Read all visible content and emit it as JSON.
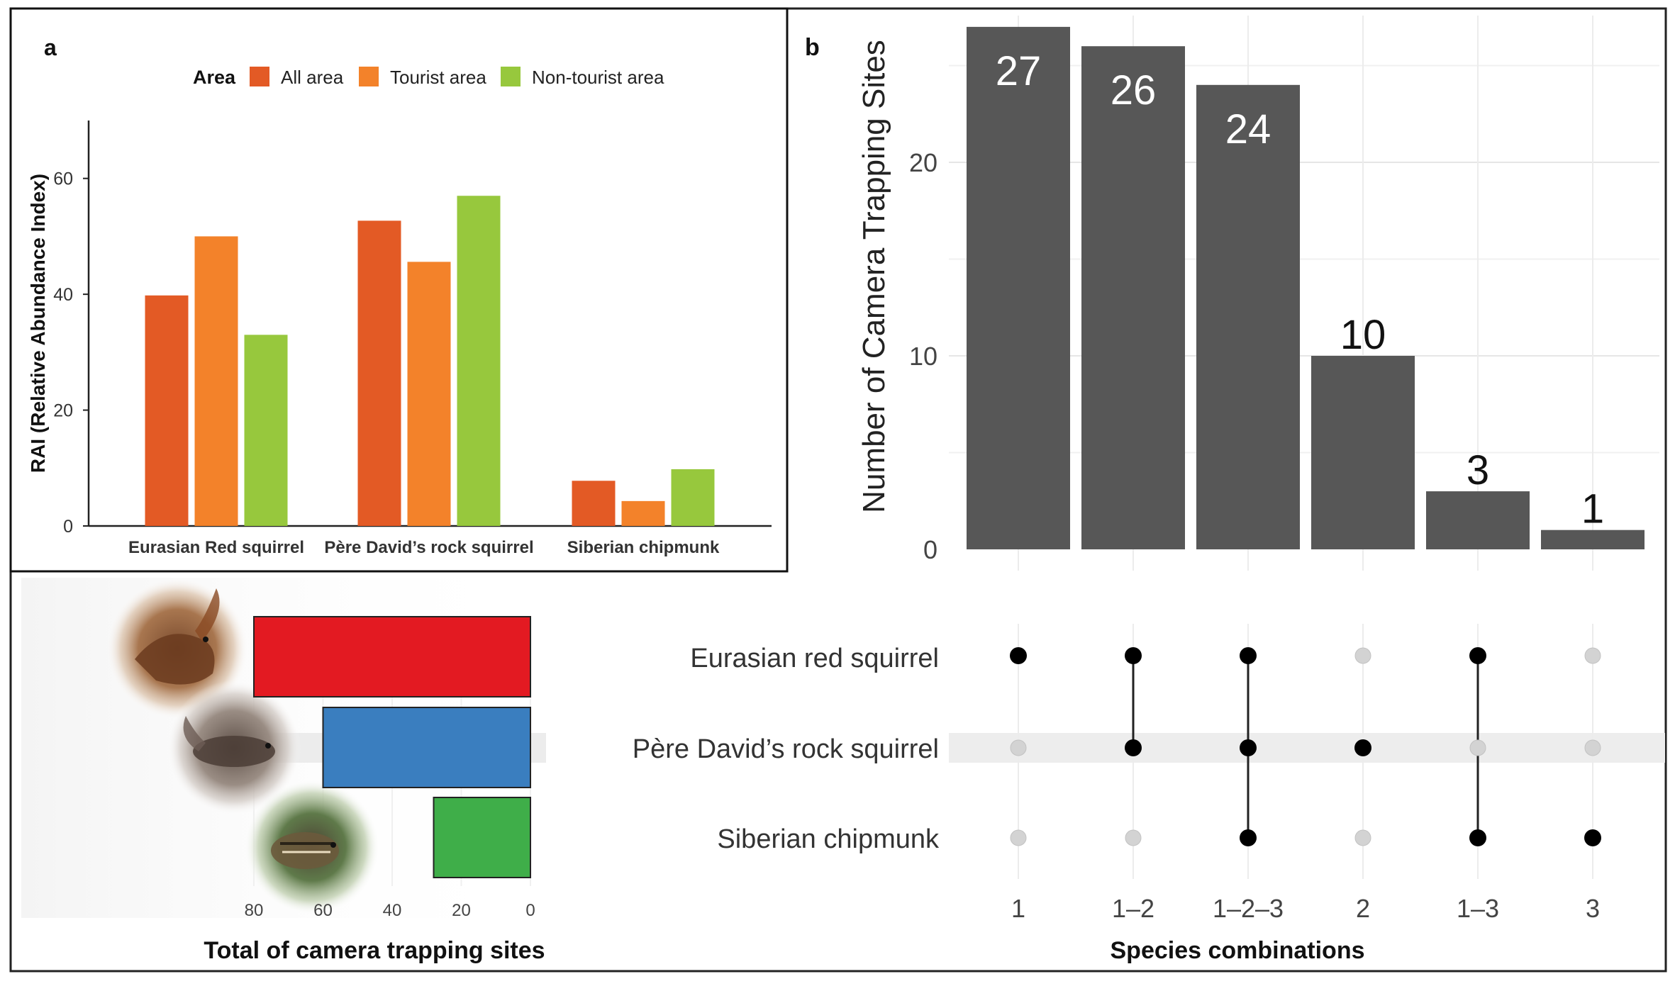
{
  "colors": {
    "all_area": "#e35a25",
    "tourist_area": "#f3822a",
    "non_tourist_area": "#97c83d",
    "upset_bar": "#575757",
    "dot_on": "#000000",
    "dot_off": "#d3d3d3",
    "total_bars": [
      "#e31a22",
      "#3a7ebf",
      "#3fae49"
    ]
  },
  "panel_a": {
    "panel_label": "a",
    "legend_title": "Area"
  },
  "panel_b": {
    "panel_label": "b"
  },
  "photos": {
    "photo_labels": [
      "Eurasian red squirrel photo",
      "Père David's rock squirrel photo",
      "Siberian chipmunk photo"
    ]
  },
  "chart_data": [
    {
      "id": "rai",
      "type": "bar",
      "title": "",
      "xlabel": "",
      "ylabel": "RAI (Relative Abundance Index)",
      "categories": [
        "Eurasian Red squirrel",
        "Père David’s rock squirrel",
        "Siberian chipmunk"
      ],
      "series": [
        {
          "name": "All area",
          "values": [
            39.8,
            52.7,
            7.8
          ]
        },
        {
          "name": "Tourist area",
          "values": [
            50.0,
            45.6,
            4.3
          ]
        },
        {
          "name": "Non-tourist area",
          "values": [
            33.0,
            57.0,
            9.8
          ]
        }
      ],
      "ylim": [
        0,
        70
      ],
      "yticks": [
        "0",
        "20",
        "40",
        "60"
      ],
      "legend": "top"
    },
    {
      "id": "intersections",
      "type": "bar",
      "title": "",
      "xlabel": "Species combinations",
      "ylabel": "Number of Camera Trapping Sites",
      "categories": [
        "1",
        "1–2",
        "1–2–3",
        "2",
        "1–3",
        "3"
      ],
      "values": [
        27,
        26,
        24,
        10,
        3,
        1
      ],
      "value_labels": [
        "27",
        "26",
        "24",
        "10",
        "3",
        "1"
      ],
      "ylim": [
        0,
        27
      ],
      "yticks": [
        "0",
        "10",
        "20"
      ],
      "grid": true
    },
    {
      "id": "matrix",
      "type": "table",
      "rows": [
        "Eurasian red squirrel",
        "Père David’s rock squirrel",
        "Siberian chipmunk"
      ],
      "columns": [
        "1",
        "1–2",
        "1–2–3",
        "2",
        "1–3",
        "3"
      ],
      "membership": [
        [
          1,
          1,
          1,
          0,
          1,
          0
        ],
        [
          0,
          1,
          1,
          1,
          0,
          0
        ],
        [
          0,
          0,
          1,
          0,
          1,
          1
        ]
      ]
    },
    {
      "id": "totals",
      "type": "bar",
      "orientation": "horizontal-reversed",
      "xlabel": "Total of camera trapping sites",
      "categories": [
        "Eurasian red squirrel",
        "Père David’s rock squirrel",
        "Siberian chipmunk"
      ],
      "values": [
        80,
        60,
        28
      ],
      "xlim": [
        0,
        80
      ],
      "xticks": [
        "80",
        "60",
        "40",
        "20",
        "0"
      ]
    }
  ]
}
